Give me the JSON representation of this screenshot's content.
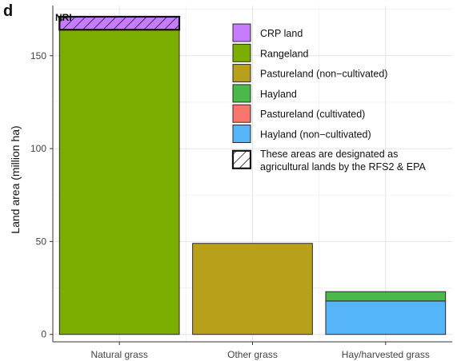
{
  "panel_letter": "d",
  "chart_data": {
    "type": "bar",
    "stacked": true,
    "title": "NRI",
    "xlabel": "",
    "ylabel": "Land area (million ha)",
    "ylim": [
      -4,
      177
    ],
    "yticks": [
      0,
      50,
      100,
      150
    ],
    "grid": true,
    "categories": [
      "Natural grass",
      "Other grass",
      "Hay/harvested grass"
    ],
    "series": [
      {
        "name": "CRP land",
        "color": "#c77cff",
        "values": [
          7,
          0,
          0
        ]
      },
      {
        "name": "Rangeland",
        "color": "#7cae00",
        "values": [
          164,
          0,
          0
        ]
      },
      {
        "name": "Pastureland (non−cultivated)",
        "color": "#b8a01a",
        "values": [
          0,
          49,
          0
        ]
      },
      {
        "name": "Hayland",
        "color": "#4cb84c",
        "values": [
          0,
          0,
          5
        ]
      },
      {
        "name": "Pastureland (cultivated)",
        "color": "#f8766d",
        "values": [
          0,
          0,
          0
        ]
      },
      {
        "name": "Hayland (non−cultivated)",
        "color": "#56b4f9",
        "values": [
          0,
          0,
          18
        ]
      }
    ],
    "stack_order": [
      "Rangeland",
      "CRP land",
      "Pastureland (non−cultivated)",
      "Hayland (non−cultivated)",
      "Hayland",
      "Pastureland (cultivated)"
    ],
    "hatched": {
      "series": "CRP land",
      "category": "Natural grass"
    },
    "legend": {
      "placement": "top-right",
      "hatch_label_line1": "These areas are designated as",
      "hatch_label_line2": "agricultural lands by the RFS2 & EPA"
    }
  }
}
